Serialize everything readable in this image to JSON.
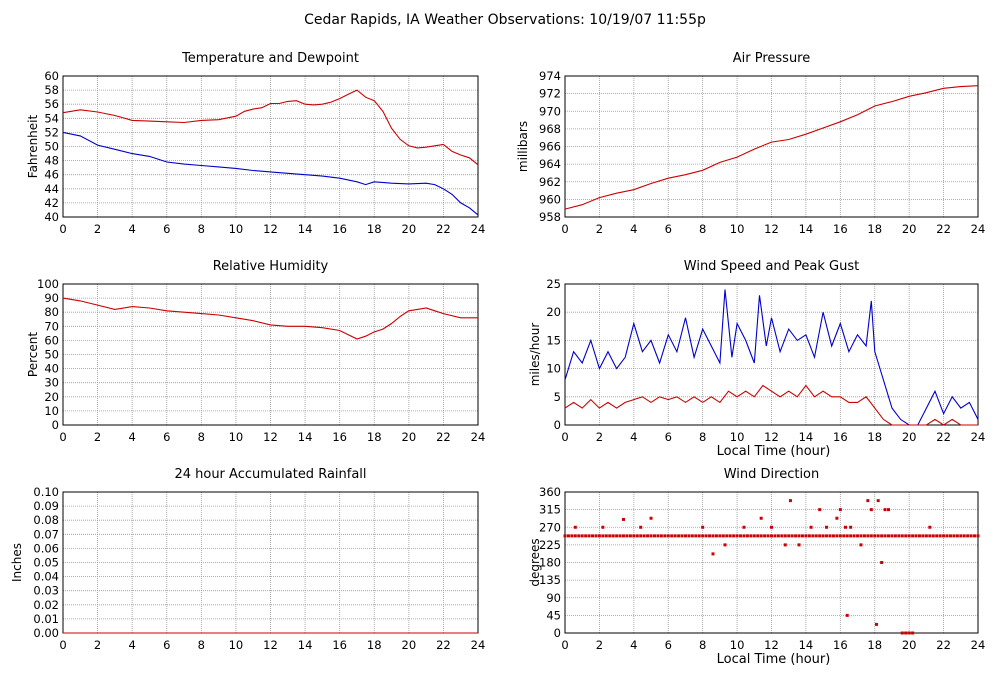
{
  "page_title": "Cedar Rapids, IA Weather Observations: 10/19/07 11:55p",
  "chart_data": [
    {
      "id": "temp",
      "type": "line",
      "title": "Temperature and Dewpoint",
      "xlabel": "",
      "ylabel": "Fahrenheit",
      "xlim": [
        0,
        24
      ],
      "ylim": [
        40,
        60
      ],
      "xticks": [
        0,
        2,
        4,
        6,
        8,
        10,
        12,
        14,
        16,
        18,
        20,
        22,
        24
      ],
      "yticks": [
        40,
        42,
        44,
        46,
        48,
        50,
        52,
        54,
        56,
        58,
        60
      ],
      "grid": true,
      "series": [
        {
          "color": "#cc0000",
          "x": [
            0,
            1,
            2,
            3,
            4,
            5,
            6,
            7,
            8,
            9,
            10,
            10.5,
            11,
            11.5,
            12,
            12.5,
            13,
            13.5,
            14,
            14.5,
            15,
            15.5,
            16,
            16.5,
            17,
            17.5,
            18,
            18.5,
            19,
            19.5,
            20,
            20.5,
            21,
            21.5,
            22,
            22.5,
            23,
            23.5,
            24
          ],
          "y": [
            54.8,
            55.2,
            54.9,
            54.4,
            53.7,
            53.6,
            53.5,
            53.4,
            53.7,
            53.8,
            54.3,
            55,
            55.3,
            55.5,
            56.1,
            56.1,
            56.4,
            56.5,
            56,
            55.9,
            56,
            56.3,
            56.8,
            57.4,
            58,
            57,
            56.5,
            55,
            52.6,
            51,
            50.1,
            49.8,
            49.9,
            50.1,
            50.3,
            49.3,
            48.8,
            48.4,
            47.4
          ]
        },
        {
          "color": "#0000cc",
          "x": [
            0,
            1,
            2,
            3,
            4,
            5,
            6,
            7,
            8,
            9,
            10,
            11,
            12,
            13,
            14,
            15,
            16,
            17,
            17.5,
            18,
            19,
            20,
            21,
            21.5,
            22,
            22.5,
            23,
            23.5,
            24
          ],
          "y": [
            52,
            51.5,
            50.2,
            49.6,
            49,
            48.6,
            47.8,
            47.5,
            47.3,
            47.1,
            46.9,
            46.6,
            46.4,
            46.2,
            46,
            45.8,
            45.5,
            45,
            44.6,
            45,
            44.8,
            44.7,
            44.8,
            44.6,
            44,
            43.2,
            42,
            41.3,
            40.3
          ]
        }
      ]
    },
    {
      "id": "pressure",
      "type": "line",
      "title": "Air Pressure",
      "xlabel": "",
      "ylabel": "millibars",
      "xlim": [
        0,
        24
      ],
      "ylim": [
        958,
        974
      ],
      "xticks": [
        0,
        2,
        4,
        6,
        8,
        10,
        12,
        14,
        16,
        18,
        20,
        22,
        24
      ],
      "yticks": [
        958,
        960,
        962,
        964,
        966,
        968,
        970,
        972,
        974
      ],
      "grid": true,
      "series": [
        {
          "color": "#cc0000",
          "x": [
            0,
            1,
            2,
            3,
            4,
            5,
            6,
            7,
            8,
            9,
            10,
            11,
            12,
            13,
            14,
            15,
            16,
            17,
            18,
            19,
            20,
            21,
            22,
            23,
            24
          ],
          "y": [
            958.9,
            959.4,
            960.2,
            960.7,
            961.1,
            961.8,
            962.4,
            962.8,
            963.3,
            964.2,
            964.8,
            965.7,
            966.5,
            966.8,
            967.4,
            968.1,
            968.8,
            969.6,
            970.6,
            971.1,
            971.7,
            972.1,
            972.6,
            972.8,
            972.9
          ]
        }
      ]
    },
    {
      "id": "humidity",
      "type": "line",
      "title": "Relative Humidity",
      "xlabel": "",
      "ylabel": "Percent",
      "xlim": [
        0,
        24
      ],
      "ylim": [
        0,
        100
      ],
      "xticks": [
        0,
        2,
        4,
        6,
        8,
        10,
        12,
        14,
        16,
        18,
        20,
        22,
        24
      ],
      "yticks": [
        0,
        10,
        20,
        30,
        40,
        50,
        60,
        70,
        80,
        90,
        100
      ],
      "grid": true,
      "series": [
        {
          "color": "#cc0000",
          "x": [
            0,
            1,
            2,
            3,
            4,
            5,
            6,
            7,
            8,
            9,
            10,
            11,
            12,
            13,
            14,
            15,
            16,
            16.5,
            17,
            17.5,
            18,
            18.5,
            19,
            19.5,
            20,
            20.5,
            21,
            21.5,
            22,
            23,
            24
          ],
          "y": [
            90,
            88,
            85,
            82,
            84,
            83,
            81,
            80,
            79,
            78,
            76,
            74,
            71,
            70,
            70,
            69,
            67,
            64,
            61,
            63,
            66,
            68,
            72,
            77,
            81,
            82,
            83,
            81,
            79,
            76,
            76
          ]
        }
      ]
    },
    {
      "id": "wind",
      "type": "line",
      "title": "Wind Speed and Peak Gust",
      "xlabel": "Local Time (hour)",
      "ylabel": "miles/hour",
      "xlim": [
        0,
        24
      ],
      "ylim": [
        0,
        25
      ],
      "xticks": [
        0,
        2,
        4,
        6,
        8,
        10,
        12,
        14,
        16,
        18,
        20,
        22,
        24
      ],
      "yticks": [
        0,
        5,
        10,
        15,
        20,
        25
      ],
      "grid": true,
      "series": [
        {
          "color": "#0000cc",
          "x": [
            0,
            0.5,
            1,
            1.5,
            2,
            2.5,
            3,
            3.5,
            4,
            4.5,
            5,
            5.5,
            6,
            6.5,
            7,
            7.5,
            8,
            8.5,
            9,
            9.3,
            9.7,
            10,
            10.5,
            11,
            11.3,
            11.7,
            12,
            12.5,
            13,
            13.5,
            14,
            14.5,
            15,
            15.5,
            16,
            16.5,
            17,
            17.5,
            17.8,
            18,
            18.5,
            19,
            19.5,
            20,
            20.5,
            21,
            21.5,
            22,
            22.5,
            23,
            23.5,
            24
          ],
          "y": [
            8,
            13,
            11,
            15,
            10,
            13,
            10,
            12,
            18,
            13,
            15,
            11,
            16,
            13,
            19,
            12,
            17,
            14,
            11,
            24,
            12,
            18,
            15,
            11,
            23,
            14,
            19,
            13,
            17,
            15,
            16,
            12,
            20,
            14,
            18,
            13,
            16,
            14,
            22,
            13,
            8,
            3,
            1,
            0,
            0,
            3,
            6,
            2,
            5,
            3,
            4,
            1
          ]
        },
        {
          "color": "#cc0000",
          "x": [
            0,
            0.5,
            1,
            1.5,
            2,
            2.5,
            3,
            3.5,
            4,
            4.5,
            5,
            5.5,
            6,
            6.5,
            7,
            7.5,
            8,
            8.5,
            9,
            9.5,
            10,
            10.5,
            11,
            11.5,
            12,
            12.5,
            13,
            13.5,
            14,
            14.5,
            15,
            15.5,
            16,
            16.5,
            17,
            17.5,
            18,
            18.5,
            19,
            19.5,
            20,
            20.5,
            21,
            21.5,
            22,
            22.5,
            23,
            23.5,
            24
          ],
          "y": [
            3,
            4,
            3,
            4.5,
            3,
            4,
            3,
            4,
            4.5,
            5,
            4,
            5,
            4.5,
            5,
            4,
            5,
            4,
            5,
            4,
            6,
            5,
            6,
            5,
            7,
            6,
            5,
            6,
            5,
            7,
            5,
            6,
            5,
            5,
            4,
            4,
            5,
            3,
            1,
            0,
            0,
            0,
            0,
            0,
            1,
            0,
            1,
            0,
            0,
            0
          ]
        }
      ]
    },
    {
      "id": "rain",
      "type": "line",
      "title": "24 hour Accumulated Rainfall",
      "xlabel": "",
      "ylabel": "Inches",
      "xlim": [
        0,
        24
      ],
      "ylim": [
        0,
        0.1
      ],
      "xticks": [
        0,
        2,
        4,
        6,
        8,
        10,
        12,
        14,
        16,
        18,
        20,
        22,
        24
      ],
      "yticks": [
        0.0,
        0.01,
        0.02,
        0.03,
        0.04,
        0.05,
        0.06,
        0.07,
        0.08,
        0.09,
        0.1
      ],
      "ytick_labels": [
        "0.00",
        "0.01",
        "0.02",
        "0.03",
        "0.04",
        "0.05",
        "0.06",
        "0.07",
        "0.08",
        "0.09",
        "0.10"
      ],
      "grid": true,
      "series": [
        {
          "color": "#cc0000",
          "x": [
            0,
            24
          ],
          "y": [
            0,
            0
          ]
        }
      ]
    },
    {
      "id": "direction",
      "type": "scatter",
      "title": "Wind Direction",
      "xlabel": "Local Time (hour)",
      "ylabel": "degrees",
      "xlim": [
        0,
        24
      ],
      "ylim": [
        0,
        360
      ],
      "xticks": [
        0,
        2,
        4,
        6,
        8,
        10,
        12,
        14,
        16,
        18,
        20,
        22,
        24
      ],
      "yticks": [
        0,
        45,
        90,
        135,
        180,
        225,
        270,
        315,
        360
      ],
      "grid": true,
      "series": [
        {
          "color": "#cc0000",
          "x": [
            0,
            0.2,
            0.4,
            0.6,
            0.8,
            1,
            1.2,
            1.4,
            1.6,
            1.8,
            2,
            2.2,
            2.4,
            2.6,
            2.8,
            3,
            3.2,
            3.4,
            3.6,
            3.8,
            4,
            4.2,
            4.4,
            4.6,
            4.8,
            5,
            5.2,
            5.4,
            5.6,
            5.8,
            6,
            6.2,
            6.4,
            6.6,
            6.8,
            7,
            7.2,
            7.4,
            7.6,
            7.8,
            8,
            8.2,
            8.4,
            8.6,
            8.8,
            9,
            9.2,
            9.4,
            9.6,
            9.8,
            10,
            10.2,
            10.4,
            10.6,
            10.8,
            11,
            11.2,
            11.4,
            11.6,
            11.8,
            12,
            12.2,
            12.4,
            12.6,
            12.8,
            13,
            13.2,
            13.4,
            13.6,
            13.8,
            14,
            14.2,
            14.4,
            14.6,
            14.8,
            15,
            15.2,
            15.4,
            15.6,
            15.8,
            16,
            16.2,
            16.4,
            16.6,
            16.8,
            17,
            17.2,
            17.4,
            17.6,
            17.8,
            18,
            18.2,
            18.4,
            18.6,
            18.8,
            19,
            19.2,
            19.4,
            19.6,
            19.8,
            20,
            20.2,
            20.4,
            20.6,
            20.8,
            21,
            21.2,
            21.4,
            21.6,
            21.8,
            22,
            22.2,
            22.4,
            22.6,
            22.8,
            23,
            23.2,
            23.4,
            23.6,
            23.8,
            24,
            0.6,
            2.2,
            3.4,
            4.4,
            5,
            8,
            9.3,
            10.4,
            11.4,
            12,
            13.1,
            13.6,
            14.3,
            14.8,
            15.2,
            15.8,
            16,
            16.3,
            16.6,
            17.2,
            17.6,
            17.8,
            18.2,
            18.4,
            18.6,
            18.8,
            19.6,
            19.8,
            20,
            20.2,
            8.6,
            12.8,
            16.4,
            18.1,
            21.2
          ],
          "y": [
            248,
            248,
            248,
            248,
            248,
            248,
            248,
            248,
            248,
            248,
            248,
            248,
            248,
            248,
            248,
            248,
            248,
            248,
            248,
            248,
            248,
            248,
            248,
            248,
            248,
            248,
            248,
            248,
            248,
            248,
            248,
            248,
            248,
            248,
            248,
            248,
            248,
            248,
            248,
            248,
            248,
            248,
            248,
            248,
            248,
            248,
            248,
            248,
            248,
            248,
            248,
            248,
            248,
            248,
            248,
            248,
            248,
            248,
            248,
            248,
            248,
            248,
            248,
            248,
            248,
            248,
            248,
            248,
            248,
            248,
            248,
            248,
            248,
            248,
            248,
            248,
            248,
            248,
            248,
            248,
            248,
            248,
            248,
            248,
            248,
            248,
            248,
            248,
            248,
            248,
            248,
            248,
            248,
            248,
            248,
            248,
            248,
            248,
            248,
            248,
            248,
            248,
            248,
            248,
            248,
            248,
            248,
            248,
            248,
            248,
            248,
            248,
            248,
            248,
            248,
            248,
            248,
            248,
            248,
            248,
            248,
            270,
            270,
            290,
            270,
            293,
            270,
            225,
            270,
            293,
            270,
            338,
            225,
            270,
            315,
            270,
            293,
            315,
            270,
            270,
            225,
            338,
            315,
            338,
            180,
            315,
            315,
            0,
            0,
            0,
            0,
            202,
            225,
            45,
            22,
            270
          ]
        }
      ]
    }
  ]
}
